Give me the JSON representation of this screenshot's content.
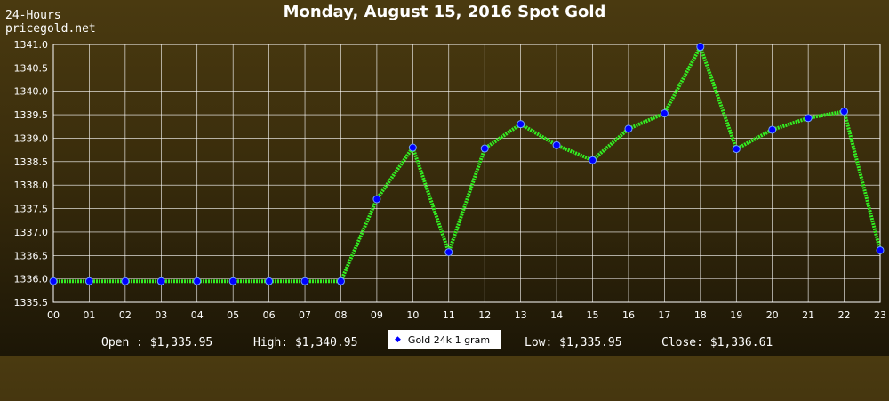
{
  "brand": {
    "line1": "24-Hours",
    "line2": "pricegold.net"
  },
  "chart_data": {
    "type": "line",
    "title": "Monday, August 15, 2016 Spot Gold",
    "xlabel": "",
    "ylabel": "",
    "categories": [
      "00",
      "01",
      "02",
      "03",
      "04",
      "05",
      "06",
      "07",
      "08",
      "09",
      "10",
      "11",
      "12",
      "13",
      "14",
      "15",
      "16",
      "17",
      "18",
      "19",
      "20",
      "21",
      "22",
      "23"
    ],
    "series": [
      {
        "name": "Gold 24k 1 gram",
        "values": [
          1335.95,
          1335.95,
          1335.95,
          1335.95,
          1335.95,
          1335.95,
          1335.95,
          1335.95,
          1335.95,
          1337.7,
          1338.8,
          1336.57,
          1338.78,
          1339.3,
          1338.85,
          1338.53,
          1339.2,
          1339.53,
          1340.95,
          1338.77,
          1339.18,
          1339.43,
          1339.57,
          1336.61
        ]
      }
    ],
    "ylim": [
      1335.5,
      1341.0
    ],
    "yticks": [
      "1335.5",
      "1336.0",
      "1336.5",
      "1337.0",
      "1337.5",
      "1338.0",
      "1338.5",
      "1339.0",
      "1339.5",
      "1340.0",
      "1340.5",
      "1341.0"
    ],
    "grid": true,
    "legend_position": "bottom-center",
    "colors": {
      "line": "#33ee22",
      "marker": "#0000ff",
      "grid": "#ffffff"
    }
  },
  "stats": {
    "open": "Open : $1,335.95",
    "high": "High: $1,340.95",
    "low": "Low: $1,335.95",
    "close": "Close: $1,336.61"
  }
}
